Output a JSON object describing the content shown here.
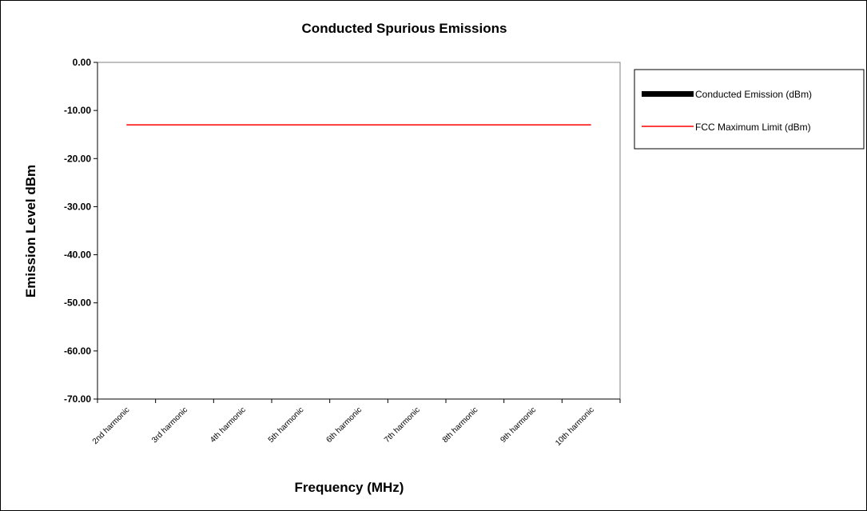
{
  "chart_data": {
    "type": "line",
    "title": "Conducted Spurious Emissions",
    "xlabel": "Frequency (MHz)",
    "ylabel": "Emission Level dBm",
    "categories": [
      "2nd harmonic",
      "3rd harmonic",
      "4th harmonic",
      "5th harmonic",
      "6th harmonic",
      "7th harmonic",
      "8th harmonic",
      "9th harmonic",
      "10th harmonic"
    ],
    "ylim": [
      -70,
      0
    ],
    "yticks": [
      "0.00",
      "-10.00",
      "-20.00",
      "-30.00",
      "-40.00",
      "-50.00",
      "-60.00",
      "-70.00"
    ],
    "grid": false,
    "legend_position": "right",
    "series": [
      {
        "name": "Conducted Emission (dBm)",
        "style": "bar",
        "color": "#000000",
        "values": [
          null,
          null,
          null,
          null,
          null,
          null,
          null,
          null,
          null
        ]
      },
      {
        "name": "FCC Maximum Limit (dBm)",
        "style": "line",
        "color": "#ff0000",
        "values": [
          -13,
          -13,
          -13,
          -13,
          -13,
          -13,
          -13,
          -13,
          -13
        ]
      }
    ]
  }
}
